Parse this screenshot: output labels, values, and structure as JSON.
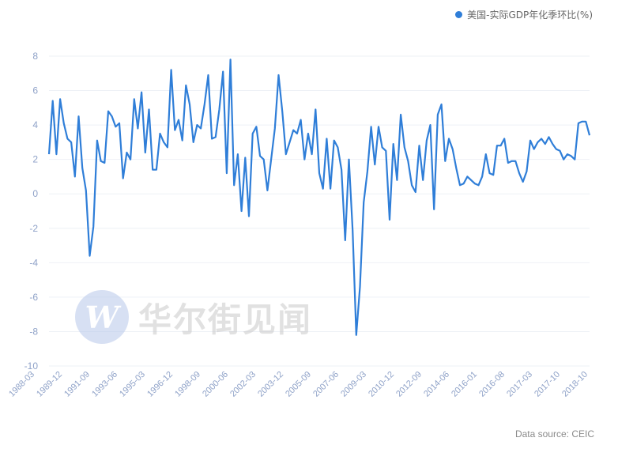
{
  "colors": {
    "series": "#2f7ed8",
    "grid": "#eef1f6",
    "axis_text": "#8fa2c8",
    "watermark_circle": "#b7c8ea",
    "watermark_text": "#c9c9c9"
  },
  "legend": {
    "label": "美国-实际GDP年化季环比(%)"
  },
  "source": "Data source: CEIC",
  "watermark": {
    "logo": "W",
    "text": "华尔街见闻"
  },
  "chart_data": {
    "type": "line",
    "title": "",
    "xlabel": "",
    "ylabel": "",
    "ylim": [
      -10,
      8
    ],
    "yticks": [
      8,
      6,
      4,
      2,
      0,
      -2,
      -4,
      -6,
      -8,
      -10
    ],
    "grid": true,
    "legend_position": "top-right",
    "x_start": "1988-03",
    "x_end": "2018-10",
    "xtick_labels": [
      "1988-03",
      "1989-12",
      "1991-09",
      "1993-06",
      "1995-03",
      "1996-12",
      "1998-09",
      "2000-06",
      "2002-03",
      "2003-12",
      "2005-09",
      "2007-06",
      "2009-03",
      "2010-12",
      "2012-09",
      "2014-06",
      "2016-01",
      "2016-08",
      "2017-03",
      "2017-10",
      "2018-10"
    ],
    "series": [
      {
        "name": "美国-实际GDP年化季环比(%)",
        "values": [
          2.3,
          5.4,
          2.3,
          5.5,
          4.1,
          3.2,
          3.0,
          1.0,
          4.5,
          1.5,
          0.2,
          -3.6,
          -1.9,
          3.1,
          1.9,
          1.8,
          4.8,
          4.5,
          3.9,
          4.1,
          0.9,
          2.4,
          2.0,
          5.5,
          3.8,
          5.9,
          2.4,
          4.9,
          1.4,
          1.4,
          3.5,
          3.0,
          2.7,
          7.2,
          3.7,
          4.3,
          3.1,
          6.3,
          5.2,
          3.0,
          4.0,
          3.8,
          5.2,
          6.9,
          3.2,
          3.3,
          4.9,
          7.1,
          1.2,
          7.8,
          0.5,
          2.3,
          -1.0,
          2.1,
          -1.3,
          3.5,
          3.9,
          2.2,
          2.0,
          0.2,
          2.0,
          3.8,
          6.9,
          4.8,
          2.3,
          3.0,
          3.7,
          3.5,
          4.3,
          2.0,
          3.5,
          2.3,
          4.9,
          1.2,
          0.3,
          3.2,
          0.3,
          3.1,
          2.7,
          1.4,
          -2.7,
          2.0,
          -2.1,
          -8.2,
          -5.4,
          -0.5,
          1.3,
          3.9,
          1.7,
          3.9,
          2.7,
          2.5,
          -1.5,
          2.9,
          0.8,
          4.6,
          2.7,
          1.9,
          0.5,
          0.1,
          2.8,
          0.8,
          3.1,
          4.0,
          -0.9,
          4.6,
          5.2,
          1.9,
          3.2,
          2.6,
          1.5,
          0.5,
          0.6,
          1.0,
          0.8,
          0.6,
          0.5,
          1.0,
          2.3,
          1.2,
          1.1,
          2.8,
          2.8,
          3.2,
          1.8,
          1.9,
          1.9,
          1.2,
          0.7,
          1.3,
          3.1,
          2.6,
          3.0,
          3.2,
          2.9,
          3.3,
          2.9,
          2.6,
          2.5,
          2.0,
          2.3,
          2.2,
          2.0,
          4.1,
          4.2,
          4.2,
          3.4
        ]
      }
    ]
  }
}
